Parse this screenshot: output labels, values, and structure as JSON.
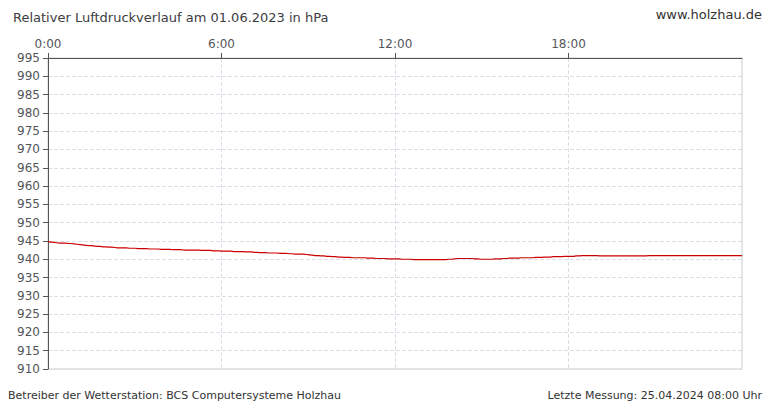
{
  "chart_data": {
    "type": "line",
    "title": "Relativer Luftdruckverlauf am 01.06.2023 in hPa",
    "annotations": [
      "www.holzhau.de",
      "Betreiber der Wetterstation: BCS Computersysteme Holzhau",
      "Letzte Messung: 25.04.2024 08:00 Uhr"
    ],
    "color": "#cc0000",
    "grid": true,
    "xlim": [
      0,
      1440
    ],
    "xticks": [
      {
        "value": 0,
        "label": "0:00"
      },
      {
        "value": 360,
        "label": "6:00"
      },
      {
        "value": 720,
        "label": "12:00"
      },
      {
        "value": 1080,
        "label": "18:00"
      }
    ],
    "ylim": [
      910,
      995
    ],
    "yticks": [
      910,
      915,
      920,
      925,
      930,
      935,
      940,
      945,
      950,
      955,
      960,
      965,
      970,
      975,
      980,
      985,
      990,
      995
    ],
    "x": [
      0,
      6.03,
      12.05,
      18.08,
      24.1,
      30.13,
      36.15,
      42.18,
      48.2,
      54.23,
      60.25,
      66.28,
      72.3,
      78.33,
      84.35,
      90.38,
      96.4,
      102.43,
      108.45,
      114.48,
      120.5,
      126.53,
      132.55,
      138.58,
      144.6,
      150.63,
      156.65,
      162.68,
      168.7,
      174.73,
      180.75,
      186.78,
      192.8,
      198.83,
      204.85,
      210.88,
      216.9,
      222.93,
      228.95,
      234.98,
      241,
      247.03,
      253.05,
      259.08,
      265.1,
      271.13,
      277.15,
      283.18,
      289.21,
      295.23,
      301.26,
      307.28,
      313.31,
      319.33,
      325.36,
      331.38,
      337.41,
      343.43,
      349.46,
      355.48,
      361.51,
      367.53,
      373.56,
      379.58,
      385.61,
      391.63,
      397.66,
      403.68,
      409.71,
      415.73,
      421.76,
      427.78,
      433.81,
      439.83,
      445.86,
      451.88,
      457.91,
      463.93,
      469.96,
      475.98,
      482.01,
      488.03,
      494.06,
      500.08,
      506.11,
      512.13,
      518.16,
      524.18,
      530.21,
      536.23,
      542.26,
      548.28,
      554.31,
      560.33,
      566.36,
      572.38,
      578.41,
      584.44,
      590.46,
      596.49,
      602.51,
      608.54,
      614.56,
      620.59,
      626.61,
      632.64,
      638.66,
      644.69,
      650.71,
      656.74,
      662.76,
      668.79,
      674.81,
      680.84,
      686.86,
      692.89,
      698.91,
      704.94,
      710.96,
      716.99,
      723.01,
      729.04,
      735.06,
      741.09,
      747.11,
      753.14,
      759.16,
      765.19,
      771.21,
      777.24,
      783.26,
      789.29,
      795.31,
      801.34,
      807.36,
      813.39,
      819.41,
      825.44,
      831.46,
      837.49,
      843.51,
      849.54,
      855.56,
      861.59,
      867.62,
      873.64,
      879.67,
      885.69,
      891.72,
      897.74,
      903.77,
      909.79,
      915.82,
      921.84,
      927.87,
      933.89,
      939.92,
      945.94,
      951.97,
      957.99,
      964.02,
      970.04,
      976.07,
      982.09,
      988.12,
      994.14,
      1000.17,
      1006.19,
      1012.22,
      1018.24,
      1024.27,
      1030.29,
      1036.32,
      1042.34,
      1048.37,
      1054.39,
      1060.42,
      1066.44,
      1072.47,
      1078.49,
      1084.52,
      1090.54,
      1096.57,
      1102.59,
      1108.62,
      1114.64,
      1120.67,
      1126.69,
      1132.72,
      1138.74,
      1144.77,
      1150.79,
      1156.82,
      1162.85,
      1168.87,
      1174.9,
      1180.92,
      1186.95,
      1192.97,
      1199,
      1205.02,
      1211.05,
      1217.07,
      1223.1,
      1229.12,
      1235.15,
      1241.17,
      1247.2,
      1253.22,
      1259.25,
      1265.27,
      1271.3,
      1277.32,
      1283.35,
      1289.37,
      1295.4,
      1301.42,
      1307.45,
      1313.47,
      1319.5,
      1325.52,
      1331.55,
      1337.57,
      1343.6,
      1349.62,
      1355.65,
      1361.67,
      1367.7,
      1373.72,
      1379.75,
      1385.77,
      1391.8,
      1397.82,
      1403.85,
      1409.87,
      1415.9,
      1421.92,
      1427.95,
      1433.97,
      1440
    ],
    "values": [
      944.8,
      944.7,
      944.6,
      944.5,
      944.4,
      944.4,
      944.4,
      944.3,
      944.3,
      944.2,
      944.1,
      944.0,
      943.9,
      943.8,
      943.7,
      943.7,
      943.6,
      943.5,
      943.5,
      943.4,
      943.4,
      943.3,
      943.3,
      943.2,
      943.1,
      943.1,
      943.1,
      943.1,
      943.0,
      943.0,
      943.0,
      942.9,
      942.9,
      942.9,
      942.9,
      942.8,
      942.8,
      942.8,
      942.8,
      942.7,
      942.7,
      942.7,
      942.7,
      942.6,
      942.6,
      942.6,
      942.6,
      942.5,
      942.5,
      942.5,
      942.5,
      942.5,
      942.5,
      942.4,
      942.4,
      942.4,
      942.4,
      942.3,
      942.3,
      942.3,
      942.2,
      942.2,
      942.2,
      942.2,
      942.1,
      942.1,
      942.1,
      942.1,
      942.0,
      942.0,
      942.0,
      941.9,
      941.9,
      941.8,
      941.8,
      941.8,
      941.7,
      941.7,
      941.7,
      941.7,
      941.6,
      941.6,
      941.6,
      941.5,
      941.5,
      941.4,
      941.4,
      941.4,
      941.4,
      941.3,
      941.2,
      941.1,
      941.0,
      941.0,
      940.9,
      940.9,
      940.8,
      940.8,
      940.7,
      940.7,
      940.6,
      940.6,
      940.5,
      940.5,
      940.5,
      940.4,
      940.4,
      940.4,
      940.4,
      940.4,
      940.3,
      940.3,
      940.3,
      940.2,
      940.2,
      940.2,
      940.2,
      940.1,
      940.1,
      940.1,
      940.1,
      940.1,
      940.0,
      940.0,
      940.0,
      940.0,
      939.9,
      939.9,
      939.9,
      939.9,
      939.9,
      939.9,
      939.9,
      939.9,
      939.9,
      939.9,
      939.9,
      939.9,
      940.0,
      940.0,
      940.1,
      940.2,
      940.2,
      940.2,
      940.2,
      940.2,
      940.2,
      940.1,
      940.1,
      940.0,
      940.0,
      940.0,
      940.0,
      940.0,
      940.1,
      940.1,
      940.1,
      940.2,
      940.2,
      940.3,
      940.3,
      940.3,
      940.3,
      940.4,
      940.4,
      940.4,
      940.4,
      940.4,
      940.5,
      940.5,
      940.5,
      940.6,
      940.6,
      940.6,
      940.7,
      940.7,
      940.7,
      940.7,
      940.8,
      940.8,
      940.8,
      940.8,
      940.9,
      940.9,
      941.0,
      941.0,
      941.0,
      941.0,
      941.0,
      941.0,
      940.9,
      940.9,
      940.9,
      940.9,
      940.9,
      940.9,
      940.9,
      940.9,
      940.9,
      940.9,
      940.9,
      940.9,
      940.9,
      940.9,
      940.9,
      940.9,
      940.9,
      941.0,
      941.0,
      941.0,
      941.0,
      941.0,
      941.0,
      941.0,
      941.0,
      941.0,
      941.0,
      941.0,
      941.0,
      941.0,
      941.0,
      941.0,
      941.0,
      941.0,
      941.0,
      941.0,
      941.0,
      941.0,
      941.0,
      941.0,
      941.0,
      941.0,
      941.0,
      941.0,
      941.0,
      941.0,
      941.0,
      941.0,
      941.0,
      941.0
    ]
  }
}
